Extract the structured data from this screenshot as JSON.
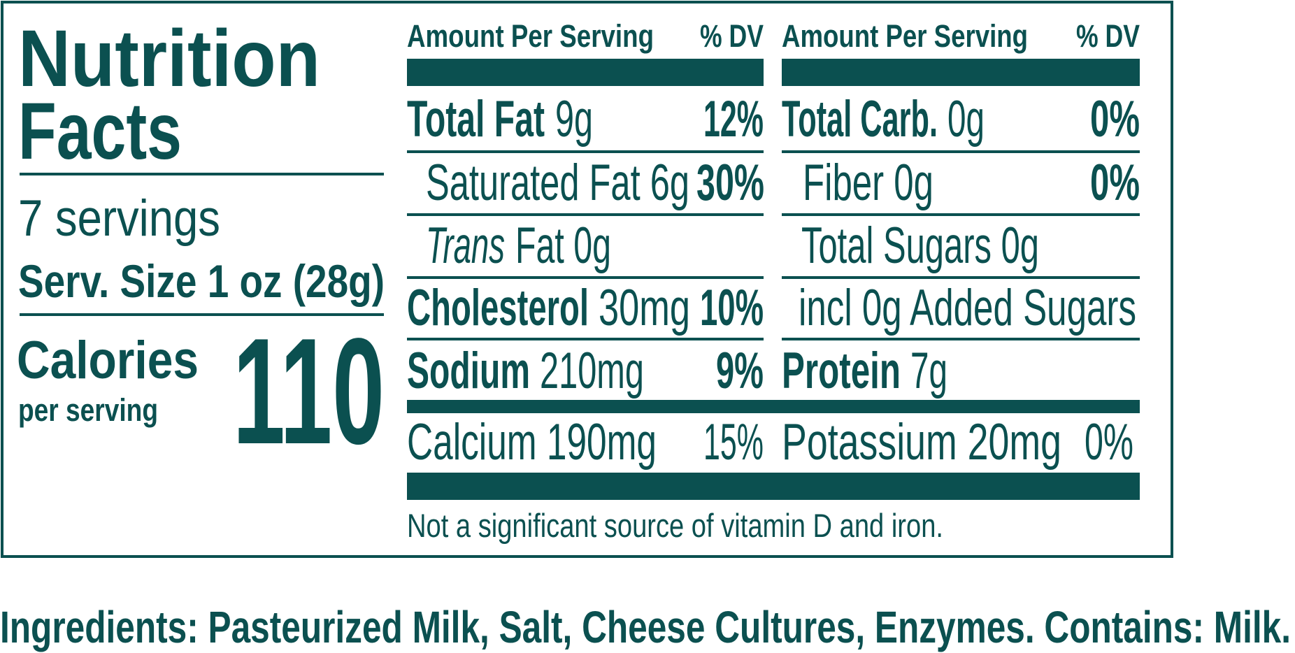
{
  "header": {
    "title_lines": [
      "Nutrition",
      "Facts"
    ],
    "servings": "7 servings",
    "serving_size": "Serv. Size 1 oz (28g)"
  },
  "calories": {
    "label": "Calories",
    "sublabel": "per serving",
    "value": "110"
  },
  "columns": [
    {
      "header": {
        "amount": "Amount Per Serving",
        "dv": "% DV"
      },
      "rows": [
        {
          "name": "Total Fat",
          "amount": "9g",
          "dv": "12%"
        },
        {
          "name": "Saturated Fat 6g",
          "dv": "30%"
        },
        {
          "name": "Trans",
          "amount": "Fat 0g"
        },
        {
          "name": "Cholesterol",
          "amount": "30mg",
          "dv": "10%"
        },
        {
          "name": "Sodium",
          "amount": "210mg",
          "dv": "9%"
        }
      ]
    },
    {
      "header": {
        "amount": "Amount Per Serving",
        "dv": "% DV"
      },
      "rows": [
        {
          "name": "Total Carb.",
          "amount": "0g",
          "dv": "0%"
        },
        {
          "name": "Fiber 0g",
          "dv": "0%"
        },
        {
          "name": "Total Sugars 0g"
        },
        {
          "name": "incl 0g Added Sugars"
        },
        {
          "name": "Protein",
          "amount": "7g"
        }
      ]
    }
  ],
  "minerals": [
    {
      "name": "Calcium 190mg",
      "dv": "15%"
    },
    {
      "name": "Potassium 20mg",
      "dv": "0%"
    }
  ],
  "footnote": "Not a significant source of vitamin D and iron.",
  "ingredients": "Ingredients: Pasteurized Milk, Salt, Cheese Cultures, Enzymes. Contains: Milk."
}
